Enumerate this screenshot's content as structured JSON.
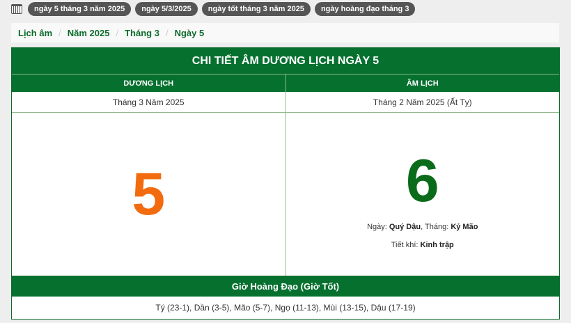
{
  "tags": [
    "ngày 5 tháng 3 năm 2025",
    "ngày 5/3/2025",
    "ngày tốt tháng 3 năm 2025",
    "ngày hoàng đạo tháng 3"
  ],
  "breadcrumb": [
    "Lịch âm",
    "Năm 2025",
    "Tháng 3",
    "Ngày 5"
  ],
  "table": {
    "title": "CHI TIẾT ÂM DƯƠNG LỊCH NGÀY 5",
    "solar_header": "DƯƠNG LỊCH",
    "lunar_header": "ÂM LỊCH",
    "solar_month": "Tháng 3 Năm 2025",
    "lunar_month": "Tháng 2 Năm 2025 (Ất Tỵ)",
    "solar_day": "5",
    "lunar_day": "6",
    "day_label": "Ngày: ",
    "day_value": "Quý Dậu",
    "month_label": ", Tháng: ",
    "month_value": "Kỷ Mão",
    "term_label": "Tiết khí: ",
    "term_value": "Kinh trập",
    "hours_title": "Giờ Hoàng Đạo (Giờ Tốt)",
    "hours": "Tý (23-1), Dần (3-5), Mão (5-7), Ngọ (11-13), Mùi (13-15), Dậu (17-19)"
  },
  "colors": {
    "green": "#06702f",
    "orange": "#f26b0f",
    "tag": "#555555"
  }
}
